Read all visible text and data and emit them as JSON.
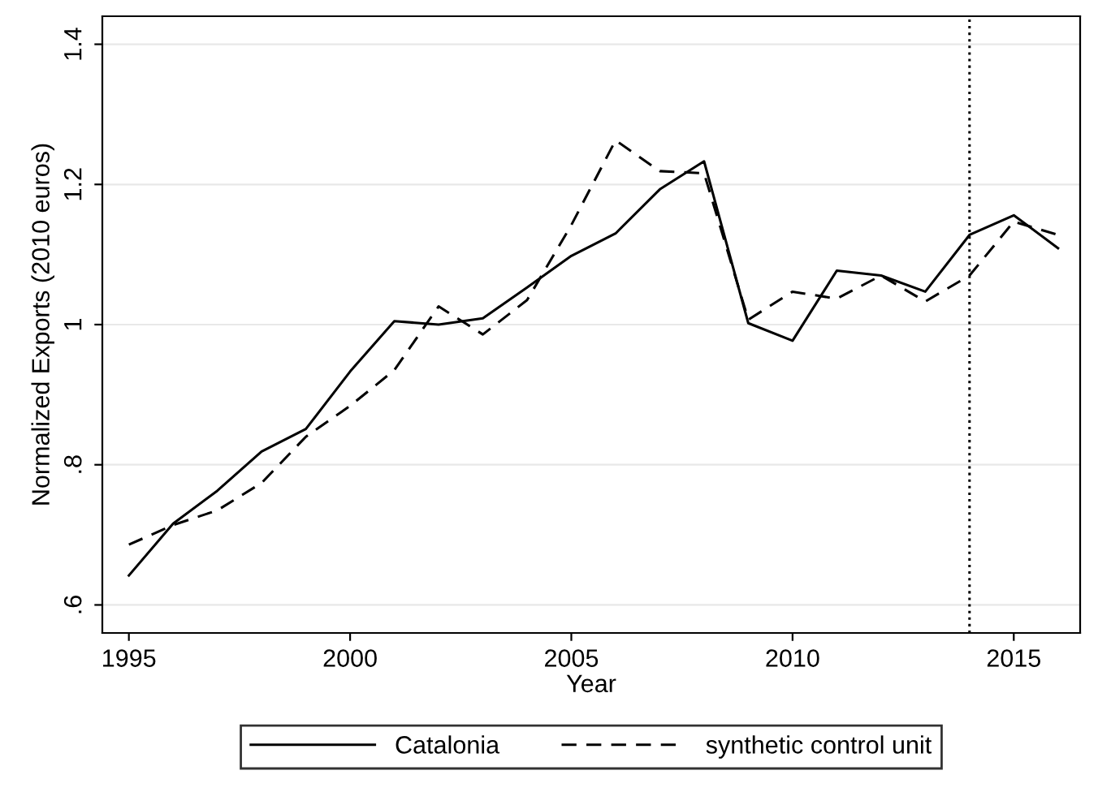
{
  "chart_data": {
    "type": "line",
    "xlabel": "Year",
    "ylabel": "Normalized Exports (2010 euros)",
    "x": [
      1995,
      1996,
      1997,
      1998,
      1999,
      2000,
      2001,
      2002,
      2003,
      2004,
      2005,
      2006,
      2007,
      2008,
      2009,
      2010,
      2011,
      2012,
      2013,
      2014,
      2015,
      2016
    ],
    "series": [
      {
        "name": "Catalonia",
        "color": "#000000",
        "line_style": "solid",
        "values": [
          0.642,
          0.716,
          0.763,
          0.819,
          0.851,
          0.933,
          1.005,
          1.0,
          1.009,
          1.053,
          1.098,
          1.13,
          1.193,
          1.233,
          1.002,
          0.977,
          1.077,
          1.07,
          1.047,
          1.128,
          1.156,
          1.109
        ]
      },
      {
        "name": "synthetic control unit",
        "color": "#000000",
        "line_style": "dashed",
        "values": [
          0.686,
          0.714,
          0.735,
          0.774,
          0.84,
          0.884,
          0.935,
          1.026,
          0.986,
          1.035,
          1.142,
          1.263,
          1.219,
          1.216,
          1.007,
          1.047,
          1.037,
          1.07,
          1.033,
          1.07,
          1.147,
          1.128
        ]
      }
    ],
    "xlim": [
      1994.4,
      2016.5
    ],
    "ylim": [
      0.56,
      1.44
    ],
    "xticks": [
      1995,
      2000,
      2005,
      2010,
      2015
    ],
    "yticks": [
      {
        "value": 0.6,
        "label": ".6"
      },
      {
        "value": 0.8,
        "label": ".8"
      },
      {
        "value": 1.0,
        "label": "1"
      },
      {
        "value": 1.2,
        "label": "1.2"
      },
      {
        "value": 1.4,
        "label": "1.4"
      }
    ],
    "ref_lines": [
      {
        "axis": "x",
        "value": 2014,
        "label": null,
        "color": "#000000",
        "line_style": "dotted"
      }
    ],
    "grid": "y",
    "legend": "bottom",
    "marker": "none"
  }
}
